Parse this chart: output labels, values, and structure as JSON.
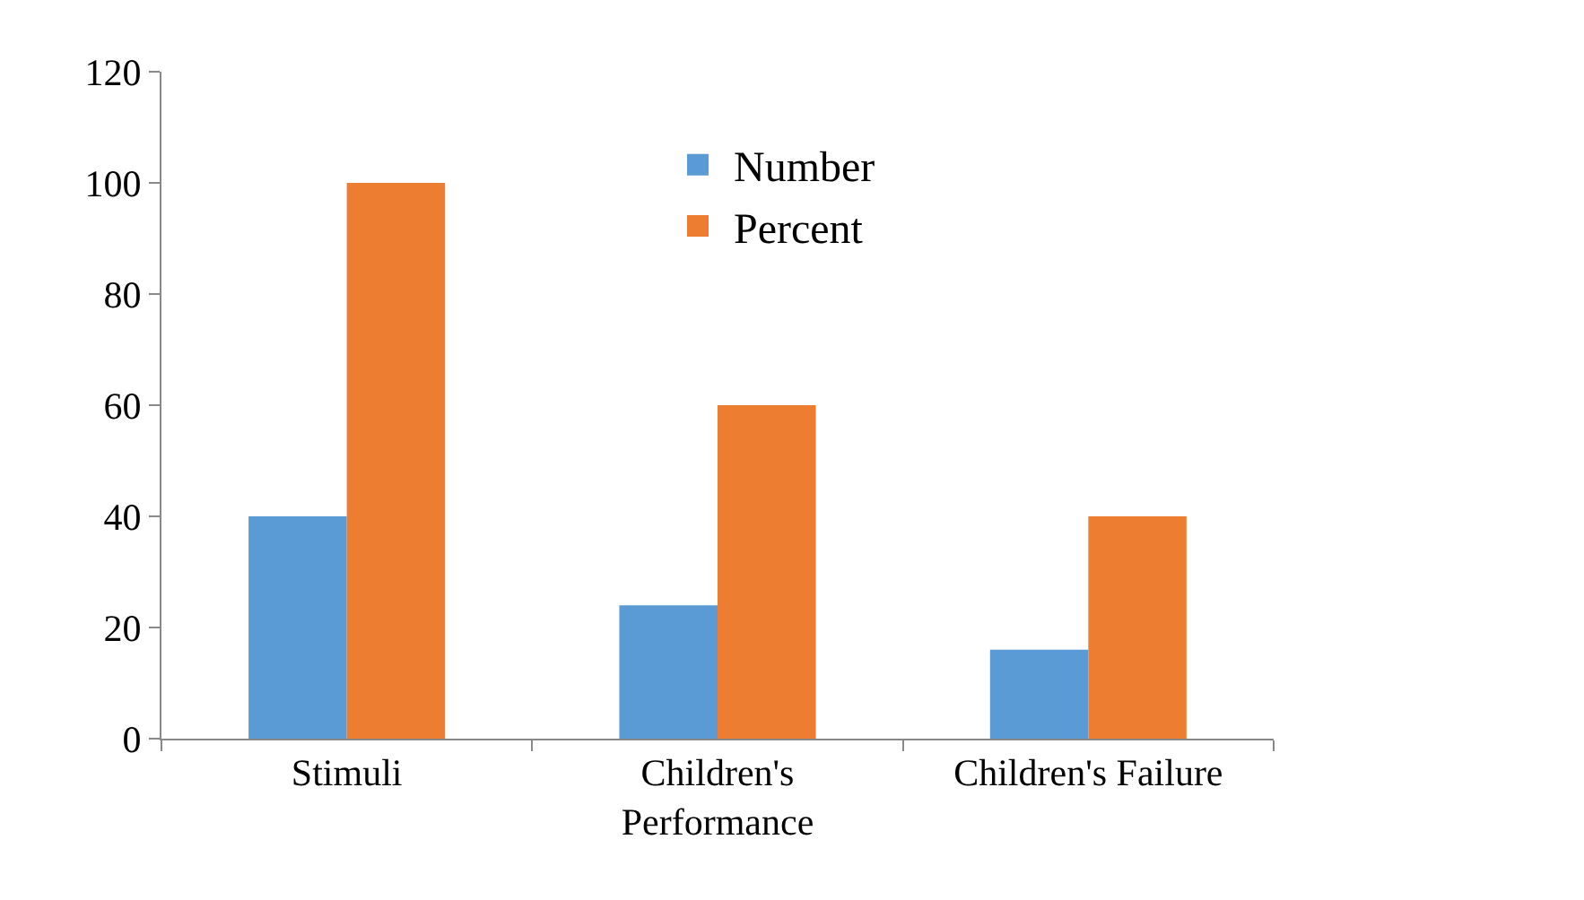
{
  "chart_data": {
    "type": "bar",
    "categories": [
      "Stimuli",
      "Children's Performance",
      "Children's Failure"
    ],
    "series": [
      {
        "name": "Number",
        "color": "#5b9bd5",
        "values": [
          40,
          24,
          16
        ]
      },
      {
        "name": "Percent",
        "color": "#ed7d31",
        "values": [
          100,
          60,
          40
        ]
      }
    ],
    "ylim": [
      0,
      120
    ],
    "yticks": [
      0,
      20,
      40,
      60,
      80,
      100,
      120
    ],
    "legend": "top"
  }
}
